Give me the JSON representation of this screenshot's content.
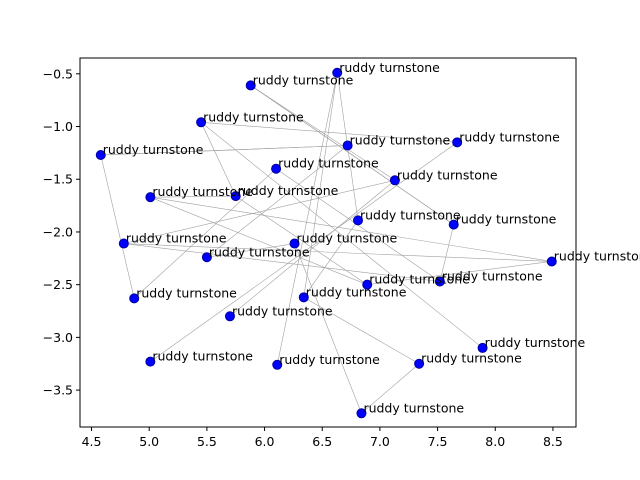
{
  "chart_data": {
    "type": "scatter",
    "title": "",
    "xlabel": "",
    "ylabel": "",
    "xlim": [
      4.4,
      8.7
    ],
    "ylim": [
      -3.85,
      -0.35
    ],
    "grid": false,
    "point_color": "#0000ff",
    "edge_color": "#a0a0a0",
    "x_ticks": [
      4.5,
      5.0,
      5.5,
      6.0,
      6.5,
      7.0,
      7.5,
      8.0,
      8.5
    ],
    "x_tick_labels": [
      "4.5",
      "5.0",
      "5.5",
      "6.0",
      "6.5",
      "7.0",
      "7.5",
      "8.0",
      "8.5"
    ],
    "y_ticks": [
      -0.5,
      -1.0,
      -1.5,
      -2.0,
      -2.5,
      -3.0,
      -3.5
    ],
    "y_tick_labels": [
      "−0.5",
      "−1.0",
      "−1.5",
      "−2.0",
      "−2.5",
      "−3.0",
      "−3.5"
    ],
    "points": [
      {
        "x": 6.63,
        "y": -0.49,
        "label": "ruddy turnstone"
      },
      {
        "x": 5.88,
        "y": -0.61,
        "label": "ruddy turnstone"
      },
      {
        "x": 5.45,
        "y": -0.96,
        "label": "ruddy turnstone"
      },
      {
        "x": 6.72,
        "y": -1.18,
        "label": "ruddy turnstone"
      },
      {
        "x": 7.67,
        "y": -1.15,
        "label": "ruddy turnstone"
      },
      {
        "x": 4.58,
        "y": -1.27,
        "label": "ruddy turnstone"
      },
      {
        "x": 6.1,
        "y": -1.4,
        "label": "ruddy turnstone"
      },
      {
        "x": 7.13,
        "y": -1.51,
        "label": "ruddy turnstone"
      },
      {
        "x": 5.01,
        "y": -1.67,
        "label": "ruddy turnstone"
      },
      {
        "x": 5.75,
        "y": -1.66,
        "label": "ruddy turnstone"
      },
      {
        "x": 6.81,
        "y": -1.89,
        "label": "ruddy turnstone"
      },
      {
        "x": 7.64,
        "y": -1.93,
        "label": "ruddy turnstone"
      },
      {
        "x": 4.78,
        "y": -2.11,
        "label": "ruddy turnstone"
      },
      {
        "x": 6.26,
        "y": -2.11,
        "label": "ruddy turnstone"
      },
      {
        "x": 5.5,
        "y": -2.24,
        "label": "ruddy turnstone"
      },
      {
        "x": 8.49,
        "y": -2.28,
        "label": "ruddy turnstone"
      },
      {
        "x": 6.89,
        "y": -2.5,
        "label": "ruddy turnstone"
      },
      {
        "x": 7.52,
        "y": -2.47,
        "label": "ruddy turnstone"
      },
      {
        "x": 4.87,
        "y": -2.63,
        "label": "ruddy turnstone"
      },
      {
        "x": 6.34,
        "y": -2.62,
        "label": "ruddy turnstone"
      },
      {
        "x": 5.7,
        "y": -2.8,
        "label": "ruddy turnstone"
      },
      {
        "x": 7.89,
        "y": -3.1,
        "label": "ruddy turnstone"
      },
      {
        "x": 5.01,
        "y": -3.23,
        "label": "ruddy turnstone"
      },
      {
        "x": 6.11,
        "y": -3.26,
        "label": "ruddy turnstone"
      },
      {
        "x": 7.34,
        "y": -3.25,
        "label": "ruddy turnstone"
      },
      {
        "x": 6.84,
        "y": -3.72,
        "label": "ruddy turnstone"
      }
    ],
    "edges": [
      [
        0,
        10
      ],
      [
        0,
        23
      ],
      [
        0,
        19
      ],
      [
        1,
        11
      ],
      [
        1,
        7
      ],
      [
        2,
        4
      ],
      [
        2,
        21
      ],
      [
        3,
        5
      ],
      [
        3,
        14
      ],
      [
        4,
        22
      ],
      [
        5,
        18
      ],
      [
        5,
        3
      ],
      [
        6,
        17
      ],
      [
        7,
        20
      ],
      [
        8,
        9
      ],
      [
        8,
        16
      ],
      [
        8,
        15
      ],
      [
        9,
        2
      ],
      [
        11,
        1
      ],
      [
        12,
        17
      ],
      [
        12,
        7
      ],
      [
        13,
        25
      ],
      [
        13,
        14
      ],
      [
        15,
        16
      ],
      [
        15,
        12
      ],
      [
        17,
        11
      ],
      [
        19,
        24
      ],
      [
        24,
        25
      ],
      [
        16,
        9
      ],
      [
        10,
        19
      ],
      [
        6,
        18
      ]
    ]
  }
}
